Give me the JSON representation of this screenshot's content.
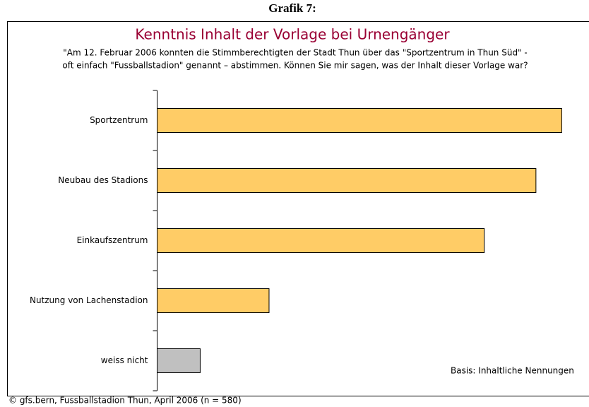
{
  "heading": "Grafik 7:",
  "chart_data": {
    "type": "barh",
    "title": "Kenntnis Inhalt der Vorlage bei Urnengänger",
    "subtitle": [
      "\"Am 12. Februar 2006 konnten die Stimmberechtigten der Stadt Thun über das \"Sportzentrum in Thun Süd\" -",
      "oft einfach \"Fussballstadion\" genannt – abstimmen. Können Sie mir sagen, was der Inhalt dieser Vorlage war?"
    ],
    "categories": [
      "Sportzentrum",
      "Neubau des Stadions",
      "Einkaufszentrum",
      "Nutzung von Lachenstadion",
      "weiss nicht"
    ],
    "values": [
      94,
      88,
      76,
      26,
      10
    ],
    "colors": [
      "#ffcc66",
      "#ffcc66",
      "#ffcc66",
      "#ffcc66",
      "#c0c0c0"
    ],
    "xlim": [
      0,
      100
    ],
    "annotation": "Basis: Inhaltliche Nennungen",
    "source": "© gfs.bern, Fussballstadion Thun, April 2006 (n = 580)"
  }
}
